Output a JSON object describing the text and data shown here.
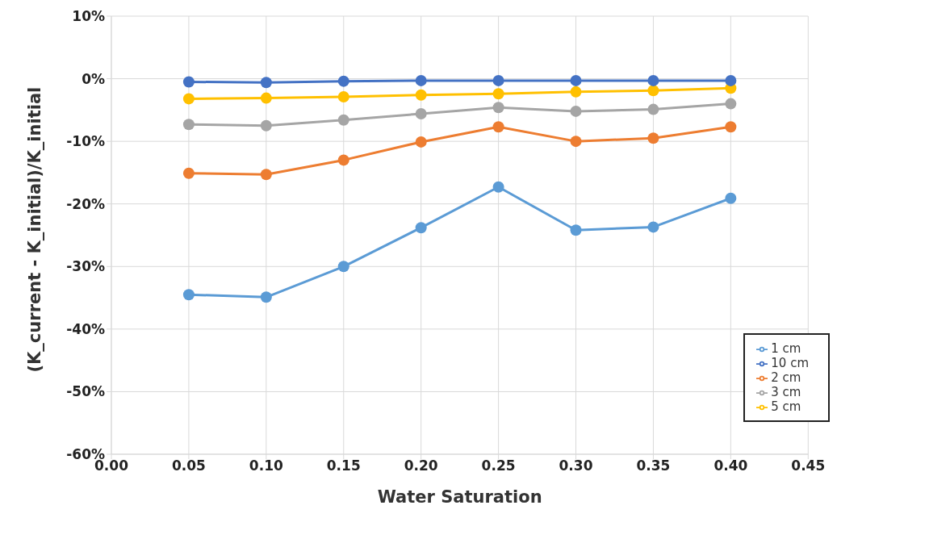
{
  "chart_data": {
    "type": "line",
    "xlabel": "Water Saturation",
    "ylabel": "(K_current - K_initial)/K_initial",
    "x": [
      0.05,
      0.1,
      0.15,
      0.2,
      0.25,
      0.3,
      0.35,
      0.4
    ],
    "series": [
      {
        "name": "1 cm",
        "color": "#5b9bd5",
        "values": [
          -34.5,
          -34.9,
          -30.0,
          -23.8,
          -17.3,
          -24.2,
          -23.7,
          -19.1
        ]
      },
      {
        "name": "2 cm",
        "color": "#ed7d31",
        "values": [
          -15.1,
          -15.3,
          -13.0,
          -10.1,
          -7.7,
          -10.0,
          -9.5,
          -7.7
        ]
      },
      {
        "name": "3 cm",
        "color": "#a5a5a5",
        "values": [
          -7.3,
          -7.5,
          -6.6,
          -5.6,
          -4.6,
          -5.2,
          -4.9,
          -4.0
        ]
      },
      {
        "name": "5 cm",
        "color": "#ffc000",
        "values": [
          -3.2,
          -3.1,
          -2.9,
          -2.6,
          -2.4,
          -2.1,
          -1.9,
          -1.5
        ]
      },
      {
        "name": "10 cm",
        "color": "#4472c4",
        "values": [
          -0.5,
          -0.6,
          -0.4,
          -0.3,
          -0.3,
          -0.3,
          -0.3,
          -0.3
        ]
      }
    ],
    "xlim": [
      0,
      0.45
    ],
    "xticks": [
      {
        "value": 0,
        "label": "0.00"
      },
      {
        "value": 0.05,
        "label": "0.05"
      },
      {
        "value": 0.1,
        "label": "0.10"
      },
      {
        "value": 0.15,
        "label": "0.15"
      },
      {
        "value": 0.2,
        "label": "0.20"
      },
      {
        "value": 0.25,
        "label": "0.25"
      },
      {
        "value": 0.3,
        "label": "0.30"
      },
      {
        "value": 0.35,
        "label": "0.35"
      },
      {
        "value": 0.4,
        "label": "0.40"
      },
      {
        "value": 0.45,
        "label": "0.45"
      }
    ],
    "ylim": [
      -60,
      10
    ],
    "yticks": [
      {
        "value": -60,
        "label": "-60%"
      },
      {
        "value": -50,
        "label": "-50%"
      },
      {
        "value": -40,
        "label": "-40%"
      },
      {
        "value": -30,
        "label": "-30%"
      },
      {
        "value": -20,
        "label": "-20%"
      },
      {
        "value": -10,
        "label": "-10%"
      },
      {
        "value": 0,
        "label": "0%"
      },
      {
        "value": 10,
        "label": "10%"
      }
    ],
    "grid": true,
    "legend": "bottom right",
    "marker": "circle",
    "line_style": "solid"
  }
}
